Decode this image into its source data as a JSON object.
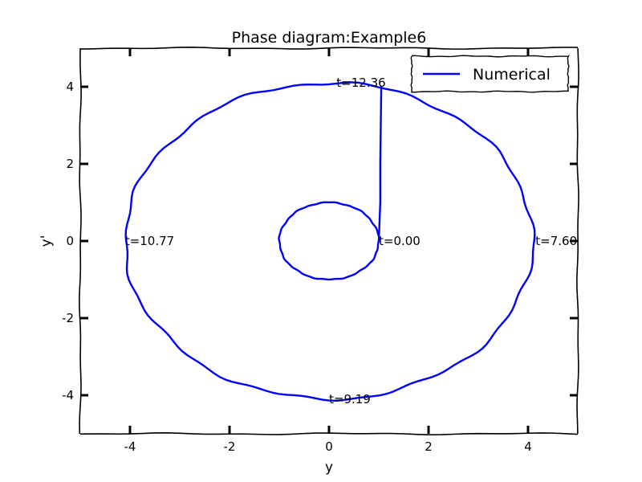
{
  "chart_data": {
    "type": "line",
    "title": "Phase diagram:Example6",
    "xlabel": "y",
    "ylabel": "y'",
    "xlim": [
      -5,
      5
    ],
    "ylim": [
      -5,
      5
    ],
    "xticks": [
      -4,
      -2,
      0,
      2,
      4
    ],
    "yticks": [
      -4,
      -2,
      0,
      2,
      4
    ],
    "xtick_labels": [
      "-4",
      "-2",
      "0",
      "2",
      "4"
    ],
    "ytick_labels": [
      "-4",
      "-2",
      "0",
      "2",
      "4"
    ],
    "grid": false,
    "legend_position": "top-right",
    "series": [
      {
        "name": "Numerical",
        "color": "#0000ff",
        "segments": [
          {
            "kind": "ellipse",
            "center": [
              0,
              0
            ],
            "radius_x": 1.0,
            "radius_y": 1.0
          },
          {
            "kind": "polyline",
            "points": [
              [
                1.0,
                0.0
              ],
              [
                1.03,
                1.0
              ],
              [
                1.03,
                2.0
              ],
              [
                1.04,
                3.0
              ],
              [
                1.05,
                4.02
              ]
            ]
          },
          {
            "kind": "ellipse",
            "center": [
              0,
              0
            ],
            "radius_x": 4.1,
            "radius_y": 4.1
          }
        ]
      }
    ],
    "annotations": [
      {
        "text": "t=12.36",
        "x": 0.15,
        "y": 4.1
      },
      {
        "text": "t=0.00",
        "x": 1.0,
        "y": 0.0
      },
      {
        "text": "t=7.60",
        "x": 4.15,
        "y": 0.0
      },
      {
        "text": "t=10.77",
        "x": -4.1,
        "y": 0.0
      },
      {
        "text": "t=9.19",
        "x": 0.0,
        "y": -4.1
      }
    ]
  }
}
